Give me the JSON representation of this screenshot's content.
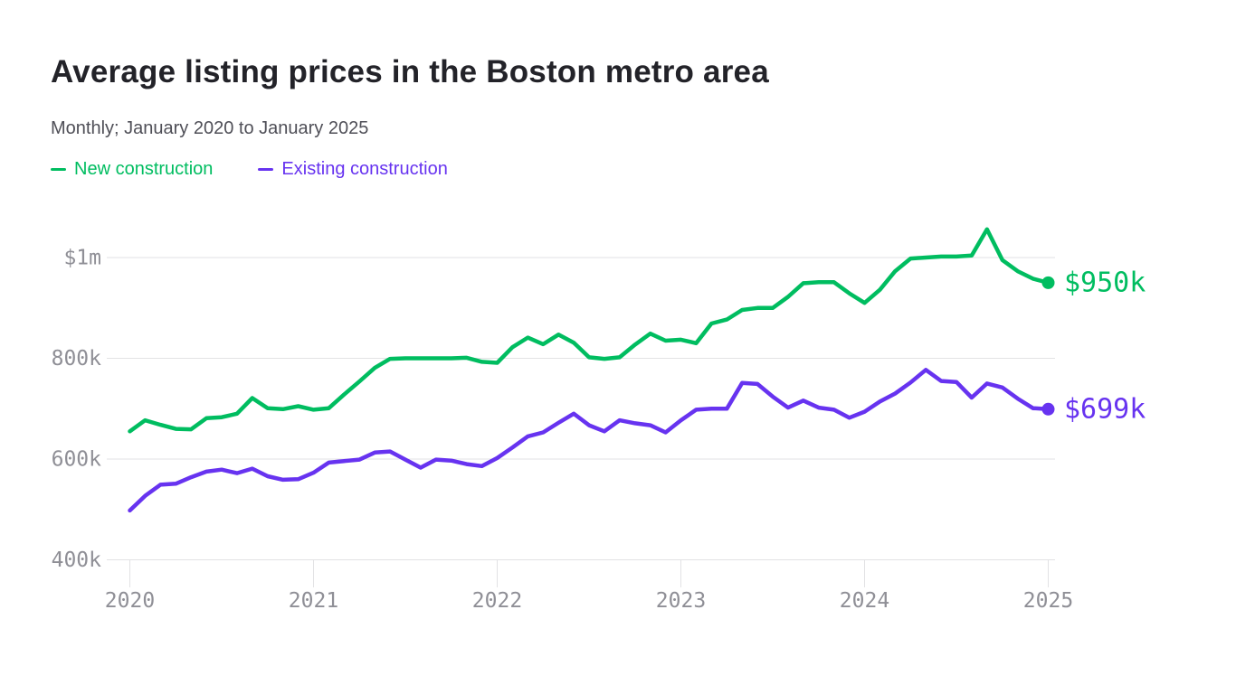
{
  "chart_data": {
    "type": "line",
    "title": "Average listing prices in the Boston metro area",
    "subtitle": "Monthly; January 2020 to January 2025",
    "unit": "USD thousands",
    "x_unit": "month",
    "x_range": [
      "2020-01",
      "2025-01"
    ],
    "x_tick_labels": [
      "2020",
      "2021",
      "2022",
      "2023",
      "2024",
      "2025"
    ],
    "y_ticks": [
      {
        "label": "$1m",
        "value": 1000
      },
      {
        "label": "800k",
        "value": 800
      },
      {
        "label": "600k",
        "value": 600
      },
      {
        "label": "400k",
        "value": 400
      }
    ],
    "ylim": [
      400,
      1080
    ],
    "grid": "horizontal",
    "grid_color": "#e2e2e4",
    "axis_text_color": "#8f8f96",
    "legend_position": "top-left",
    "series": [
      {
        "id": "new-construction",
        "name": "New construction",
        "color": "#00bd60",
        "end_label": "$950k",
        "values": [
          655,
          677,
          668,
          660,
          659,
          681,
          683,
          690,
          721,
          701,
          699,
          705,
          698,
          701,
          728,
          754,
          781,
          799,
          800,
          800,
          800,
          800,
          801,
          793,
          791,
          822,
          841,
          828,
          847,
          831,
          802,
          799,
          802,
          827,
          849,
          835,
          837,
          830,
          869,
          877,
          896,
          900,
          900,
          922,
          949,
          951,
          951,
          929,
          910,
          936,
          973,
          998,
          1000,
          1002,
          1002,
          1004,
          1056,
          995,
          973,
          958,
          950
        ]
      },
      {
        "id": "existing-construction",
        "name": "Existing construction",
        "color": "#6733f0",
        "end_label": "$699k",
        "values": [
          498,
          527,
          549,
          551,
          564,
          575,
          579,
          572,
          581,
          566,
          559,
          560,
          573,
          593,
          596,
          599,
          613,
          615,
          599,
          583,
          599,
          597,
          590,
          586,
          602,
          623,
          645,
          653,
          672,
          690,
          667,
          655,
          677,
          671,
          667,
          653,
          677,
          698,
          700,
          700,
          751,
          749,
          724,
          702,
          716,
          702,
          698,
          682,
          694,
          714,
          730,
          752,
          777,
          755,
          753,
          722,
          750,
          742,
          720,
          701,
          699
        ]
      }
    ]
  }
}
